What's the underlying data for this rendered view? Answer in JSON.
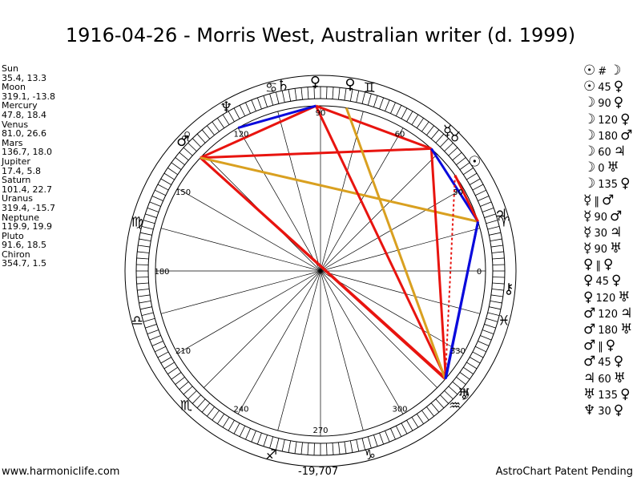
{
  "title": "1916-04-26 - Morris West, Australian writer (d. 1999)",
  "positions": [
    {
      "name": "Sun",
      "coords": "35.4, 13.3"
    },
    {
      "name": "Moon",
      "coords": "319.1, -13.8"
    },
    {
      "name": "Mercury",
      "coords": "47.8, 18.4"
    },
    {
      "name": "Venus",
      "coords": "81.0, 26.6"
    },
    {
      "name": "Mars",
      "coords": "136.7, 18.0"
    },
    {
      "name": "Jupiter",
      "coords": "17.4, 5.8"
    },
    {
      "name": "Saturn",
      "coords": "101.4, 22.7"
    },
    {
      "name": "Uranus",
      "coords": "319.4, -15.7"
    },
    {
      "name": "Neptune",
      "coords": "119.9, 19.9"
    },
    {
      "name": "Pluto",
      "coords": "91.6, 18.5"
    },
    {
      "name": "Chiron",
      "coords": "354.7, 1.5"
    }
  ],
  "aspects": [
    {
      "p1": "☉",
      "angle": "#",
      "p2": "☽"
    },
    {
      "p1": "☉",
      "angle": "45",
      "p2": "♀"
    },
    {
      "p1": "☽",
      "angle": "90",
      "p2": "♀"
    },
    {
      "p1": "☽",
      "angle": "120",
      "p2": "♀"
    },
    {
      "p1": "☽",
      "angle": "180",
      "p2": "♂"
    },
    {
      "p1": "☽",
      "angle": "60",
      "p2": "♃"
    },
    {
      "p1": "☽",
      "angle": "0",
      "p2": "♅"
    },
    {
      "p1": "☽",
      "angle": "135",
      "p2": "♀"
    },
    {
      "p1": "☿",
      "angle": "‖",
      "p2": "♂"
    },
    {
      "p1": "☿",
      "angle": "90",
      "p2": "♂"
    },
    {
      "p1": "☿",
      "angle": "30",
      "p2": "♃"
    },
    {
      "p1": "☿",
      "angle": "90",
      "p2": "♅"
    },
    {
      "p1": "♀",
      "angle": "‖",
      "p2": "♀"
    },
    {
      "p1": "♀",
      "angle": "45",
      "p2": "♀"
    },
    {
      "p1": "♀",
      "angle": "120",
      "p2": "♅"
    },
    {
      "p1": "♂",
      "angle": "120",
      "p2": "♃"
    },
    {
      "p1": "♂",
      "angle": "180",
      "p2": "♅"
    },
    {
      "p1": "♂",
      "angle": "‖",
      "p2": "♀"
    },
    {
      "p1": "♂",
      "angle": "45",
      "p2": "♀"
    },
    {
      "p1": "♃",
      "angle": "60",
      "p2": "♅"
    },
    {
      "p1": "♅",
      "angle": "135",
      "p2": "♀"
    },
    {
      "p1": "♆",
      "angle": "30",
      "p2": "♀"
    }
  ],
  "wheel": {
    "degree_labels": [
      {
        "text": "0",
        "angle": 0
      },
      {
        "text": "30",
        "angle": 30
      },
      {
        "text": "60",
        "angle": 60
      },
      {
        "text": "90",
        "angle": 90
      },
      {
        "text": "120",
        "angle": 120
      },
      {
        "text": "150",
        "angle": 150
      },
      {
        "text": "180",
        "angle": 180
      },
      {
        "text": "210",
        "angle": 210
      },
      {
        "text": "240",
        "angle": 240
      },
      {
        "text": "270",
        "angle": 270
      },
      {
        "text": "300",
        "angle": 300
      },
      {
        "text": "330",
        "angle": 330
      }
    ],
    "signs": [
      {
        "name": "aries",
        "glyph": "♈",
        "angle": 15
      },
      {
        "name": "taurus",
        "glyph": "♉",
        "angle": 45
      },
      {
        "name": "gemini",
        "glyph": "♊",
        "angle": 75
      },
      {
        "name": "cancer",
        "glyph": "♋",
        "angle": 105
      },
      {
        "name": "leo",
        "glyph": "♌",
        "angle": 135
      },
      {
        "name": "virgo",
        "glyph": "♍",
        "angle": 165
      },
      {
        "name": "libra",
        "glyph": "♎",
        "angle": 195
      },
      {
        "name": "scorpio",
        "glyph": "♏",
        "angle": 225
      },
      {
        "name": "sagittarius",
        "glyph": "♐",
        "angle": 255
      },
      {
        "name": "capricorn",
        "glyph": "♑",
        "angle": 285
      },
      {
        "name": "aquarius",
        "glyph": "♒",
        "angle": 315
      },
      {
        "name": "pisces",
        "glyph": "♓",
        "angle": 345
      }
    ],
    "planets": [
      {
        "name": "sun",
        "glyph": "☉",
        "longitude": 35.4
      },
      {
        "name": "moon",
        "glyph": "☽",
        "longitude": 319.1
      },
      {
        "name": "mercury",
        "glyph": "☿",
        "longitude": 47.8
      },
      {
        "name": "venus",
        "glyph": "♀",
        "longitude": 81.0
      },
      {
        "name": "mars",
        "glyph": "♂",
        "longitude": 136.7
      },
      {
        "name": "jupiter",
        "glyph": "♃",
        "longitude": 17.4
      },
      {
        "name": "saturn",
        "glyph": "♄",
        "longitude": 101.4
      },
      {
        "name": "uranus",
        "glyph": "♅",
        "longitude": 319.4
      },
      {
        "name": "neptune",
        "glyph": "♆",
        "longitude": 119.9
      },
      {
        "name": "pluto",
        "glyph": "♀",
        "longitude": 91.6
      },
      {
        "name": "chiron",
        "glyph": "⚷",
        "longitude": 354.7
      }
    ],
    "aspect_lines": [
      {
        "from": "mars",
        "to": "moon",
        "color": "#e8140f"
      },
      {
        "from": "mars",
        "to": "uranus",
        "color": "#e8140f"
      },
      {
        "from": "mars",
        "to": "mercury",
        "color": "#e8140f"
      },
      {
        "from": "mars",
        "to": "pluto",
        "color": "#e8140f"
      },
      {
        "from": "mars",
        "to": "jupiter",
        "color": "#d9a020"
      },
      {
        "from": "pluto",
        "to": "uranus",
        "color": "#e8140f"
      },
      {
        "from": "pluto",
        "to": "mercury",
        "color": "#e8140f"
      },
      {
        "from": "venus",
        "to": "moon",
        "color": "#d9a020"
      },
      {
        "from": "mercury",
        "to": "uranus",
        "color": "#e8140f"
      },
      {
        "from": "mercury",
        "to": "jupiter",
        "color": "#0a0adc"
      },
      {
        "from": "jupiter",
        "to": "uranus",
        "color": "#0a0adc"
      },
      {
        "from": "neptune",
        "to": "pluto",
        "color": "#0a0adc"
      },
      {
        "from": "sun",
        "to": "jupiter",
        "color": "#e8140f"
      },
      {
        "from": "sun",
        "to": "moon",
        "color": "#e8140f",
        "dashed": true
      },
      {
        "from": "jupiter",
        "to": "moon",
        "color": "#0a0adc"
      }
    ],
    "colors": {
      "red": "#e8140f",
      "blue": "#0a0adc",
      "gold": "#d9a020"
    }
  },
  "footer": {
    "left": "www.harmoniclife.com",
    "center": "-19,707",
    "right": "AstroChart Patent Pending"
  }
}
